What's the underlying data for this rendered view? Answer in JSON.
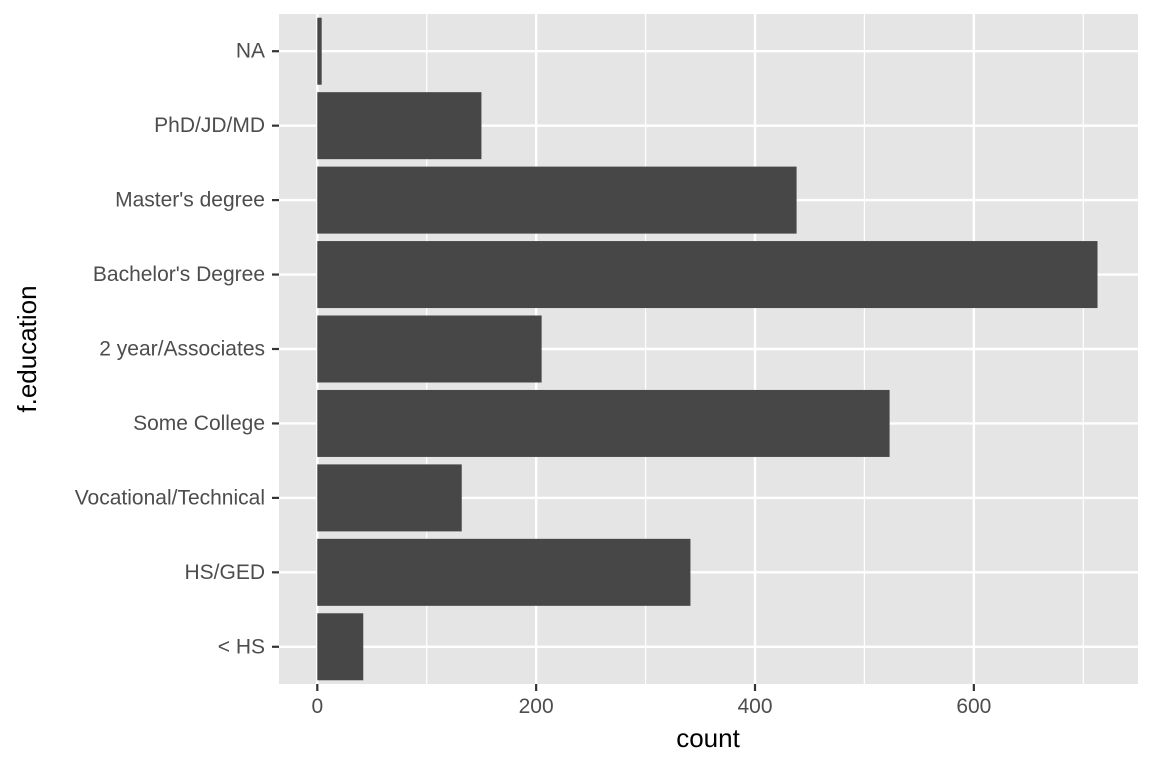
{
  "chart_data": {
    "type": "bar",
    "orientation": "horizontal",
    "title": "",
    "xlabel": "count",
    "ylabel": "f.education",
    "categories": [
      "< HS",
      "HS/GED",
      "Vocational/Technical",
      "Some College",
      "2 year/Associates",
      "Bachelor's Degree",
      "Master's degree",
      "PhD/JD/MD",
      "NA"
    ],
    "values": [
      42,
      341,
      132,
      523,
      205,
      713,
      438,
      150,
      4
    ],
    "x_ticks": [
      0,
      200,
      400,
      600
    ],
    "xlim": [
      -35,
      750
    ],
    "grid": true,
    "legend": "none",
    "colors": {
      "bar": "#474747",
      "panel": "#e5e5e5",
      "grid": "#ffffff",
      "tick_text": "#4d4d4d",
      "tick_mark": "#333333",
      "title_text": "#000000"
    }
  }
}
